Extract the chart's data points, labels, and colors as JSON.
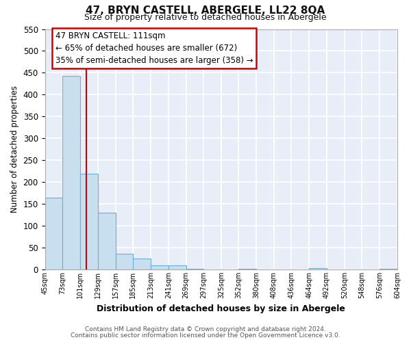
{
  "title": "47, BRYN CASTELL, ABERGELE, LL22 8QA",
  "subtitle": "Size of property relative to detached houses in Abergele",
  "xlabel": "Distribution of detached houses by size in Abergele",
  "ylabel": "Number of detached properties",
  "bar_values": [
    165,
    443,
    219,
    130,
    36,
    25,
    9,
    9,
    2,
    0,
    0,
    2,
    0,
    0,
    0,
    3,
    0,
    0,
    0,
    2
  ],
  "bin_edges": [
    45,
    73,
    101,
    129,
    157,
    185,
    213,
    241,
    269,
    297,
    325,
    352,
    380,
    408,
    436,
    464,
    492,
    520,
    548,
    576,
    604
  ],
  "bin_labels": [
    "45sqm",
    "73sqm",
    "101sqm",
    "129sqm",
    "157sqm",
    "185sqm",
    "213sqm",
    "241sqm",
    "269sqm",
    "297sqm",
    "325sqm",
    "352sqm",
    "380sqm",
    "408sqm",
    "436sqm",
    "464sqm",
    "492sqm",
    "520sqm",
    "548sqm",
    "576sqm",
    "604sqm"
  ],
  "bar_color": "#c8dff0",
  "bar_edge_color": "#6aafd6",
  "ylim": [
    0,
    550
  ],
  "yticks": [
    0,
    50,
    100,
    150,
    200,
    250,
    300,
    350,
    400,
    450,
    500,
    550
  ],
  "vline_x": 111,
  "vline_color": "#cc0000",
  "annotation_title": "47 BRYN CASTELL: 111sqm",
  "annotation_line1": "← 65% of detached houses are smaller (672)",
  "annotation_line2": "35% of semi-detached houses are larger (358) →",
  "annotation_box_color": "#ffffff",
  "annotation_box_edge": "#cc0000",
  "plot_bg_color": "#e8eef8",
  "fig_bg_color": "#ffffff",
  "grid_color": "#ffffff",
  "footer1": "Contains HM Land Registry data © Crown copyright and database right 2024.",
  "footer2": "Contains public sector information licensed under the Open Government Licence v3.0."
}
